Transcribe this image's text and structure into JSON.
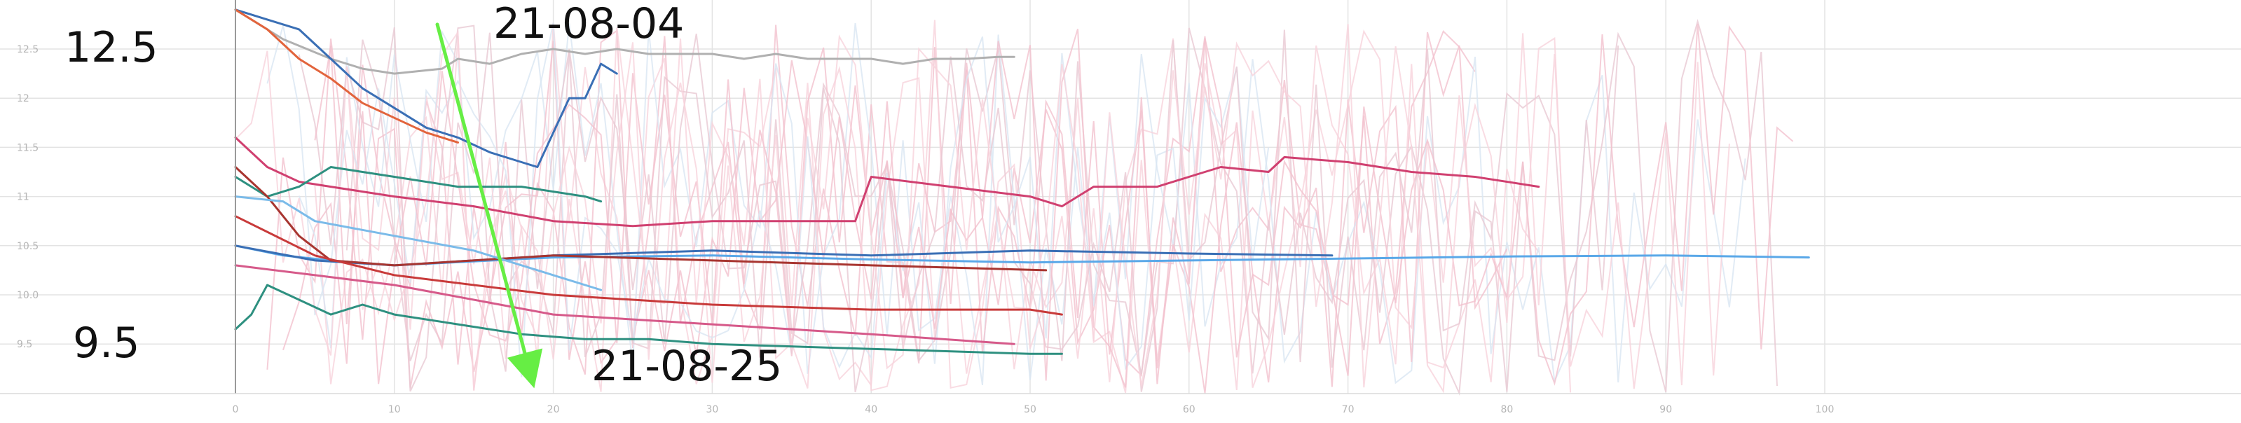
{
  "chart_data": {
    "type": "line",
    "title": "",
    "xlabel": "",
    "ylabel": "",
    "xlim": [
      -10,
      110
    ],
    "ylim": [
      9.0,
      12.75
    ],
    "grid": true,
    "x_ticks": [
      "0",
      "10",
      "20",
      "30",
      "40",
      "50",
      "60",
      "70",
      "80",
      "90",
      "100"
    ],
    "y_ticks": [
      "12.5",
      "12",
      "11.5",
      "11",
      "10.5",
      "10.0",
      "9.5"
    ],
    "annotations": {
      "upper_value": "12.5",
      "lower_value": "9.5",
      "start_date": "21-08-04",
      "end_date": "21-08-25"
    },
    "arrow": {
      "from": [
        12.7,
        12.75
      ],
      "to": [
        18.8,
        9.05
      ],
      "color": "#66ee44"
    },
    "series": [
      {
        "color": "#b0b0b0",
        "x": [
          0,
          3,
          6,
          8,
          10,
          13,
          14,
          16,
          18,
          20,
          22,
          24,
          26,
          28,
          30,
          32,
          34,
          36,
          38,
          40,
          42,
          44,
          46,
          48,
          49
        ],
        "y": [
          12.9,
          12.6,
          12.4,
          12.3,
          12.25,
          12.3,
          12.4,
          12.35,
          12.45,
          12.5,
          12.45,
          12.5,
          12.45,
          12.45,
          12.45,
          12.4,
          12.45,
          12.4,
          12.4,
          12.4,
          12.35,
          12.4,
          12.4,
          12.42,
          12.42
        ]
      },
      {
        "color": "#3a6fb5",
        "x": [
          0,
          2,
          4,
          6,
          8,
          10,
          12,
          14,
          16,
          18,
          19,
          21,
          22,
          23,
          24
        ],
        "y": [
          12.9,
          12.8,
          12.7,
          12.4,
          12.1,
          11.9,
          11.7,
          11.6,
          11.45,
          11.35,
          11.3,
          12.0,
          12.0,
          12.35,
          12.25
        ]
      },
      {
        "color": "#e2643c",
        "x": [
          0,
          2,
          4,
          6,
          8,
          10,
          12,
          14
        ],
        "y": [
          12.9,
          12.7,
          12.4,
          12.2,
          11.95,
          11.8,
          11.65,
          11.55
        ]
      },
      {
        "color": "#d04070",
        "x": [
          0,
          2,
          4,
          6,
          8,
          10,
          15,
          20,
          25,
          30,
          35,
          39,
          40,
          45,
          50,
          52,
          53,
          54,
          56,
          58,
          60,
          62,
          65,
          66,
          70,
          74,
          78,
          82
        ],
        "y": [
          11.6,
          11.3,
          11.15,
          11.1,
          11.05,
          11.0,
          10.9,
          10.75,
          10.7,
          10.75,
          10.75,
          10.75,
          11.2,
          11.1,
          11.0,
          10.9,
          11.0,
          11.1,
          11.1,
          11.1,
          11.2,
          11.3,
          11.25,
          11.4,
          11.35,
          11.25,
          11.2,
          11.1
        ]
      },
      {
        "color": "#2e9080",
        "x": [
          0,
          2,
          4,
          6,
          8,
          10,
          14,
          18,
          22,
          23
        ],
        "y": [
          11.2,
          11.0,
          11.1,
          11.3,
          11.25,
          11.2,
          11.1,
          11.1,
          11.0,
          10.95
        ]
      },
      {
        "color": "#5aa8e8",
        "x": [
          0,
          3,
          6,
          10,
          20,
          30,
          40,
          50,
          60,
          70,
          80,
          90,
          99
        ],
        "y": [
          10.5,
          10.4,
          10.35,
          10.3,
          10.38,
          10.4,
          10.36,
          10.33,
          10.35,
          10.37,
          10.39,
          10.4,
          10.38
        ]
      },
      {
        "color": "#3a6fb5",
        "x": [
          0,
          5,
          10,
          20,
          30,
          40,
          50,
          60,
          69
        ],
        "y": [
          10.5,
          10.35,
          10.3,
          10.4,
          10.45,
          10.4,
          10.45,
          10.42,
          10.4
        ]
      },
      {
        "color": "#a83530",
        "x": [
          0,
          2,
          4,
          6,
          10,
          20,
          30,
          40,
          51
        ],
        "y": [
          11.3,
          11.0,
          10.6,
          10.35,
          10.3,
          10.4,
          10.35,
          10.3,
          10.25
        ]
      },
      {
        "color": "#c83a3a",
        "x": [
          0,
          5,
          10,
          20,
          30,
          40,
          50,
          52
        ],
        "y": [
          10.8,
          10.4,
          10.2,
          10.0,
          9.9,
          9.85,
          9.85,
          9.8
        ]
      },
      {
        "color": "#d65a8a",
        "x": [
          0,
          5,
          10,
          20,
          30,
          40,
          49
        ],
        "y": [
          10.3,
          10.2,
          10.1,
          9.8,
          9.7,
          9.6,
          9.5
        ]
      },
      {
        "color": "#2e9080",
        "x": [
          0,
          1,
          2,
          4,
          6,
          8,
          10,
          14,
          18,
          22,
          26,
          30,
          40,
          50,
          52
        ],
        "y": [
          9.65,
          9.8,
          10.1,
          9.95,
          9.8,
          9.9,
          9.8,
          9.7,
          9.6,
          9.55,
          9.55,
          9.5,
          9.45,
          9.4,
          9.4
        ]
      },
      {
        "color": "#7bbbe9",
        "x": [
          0,
          3,
          5,
          10,
          15,
          20,
          23
        ],
        "y": [
          11.0,
          10.95,
          10.75,
          10.6,
          10.45,
          10.2,
          10.05
        ]
      }
    ]
  }
}
